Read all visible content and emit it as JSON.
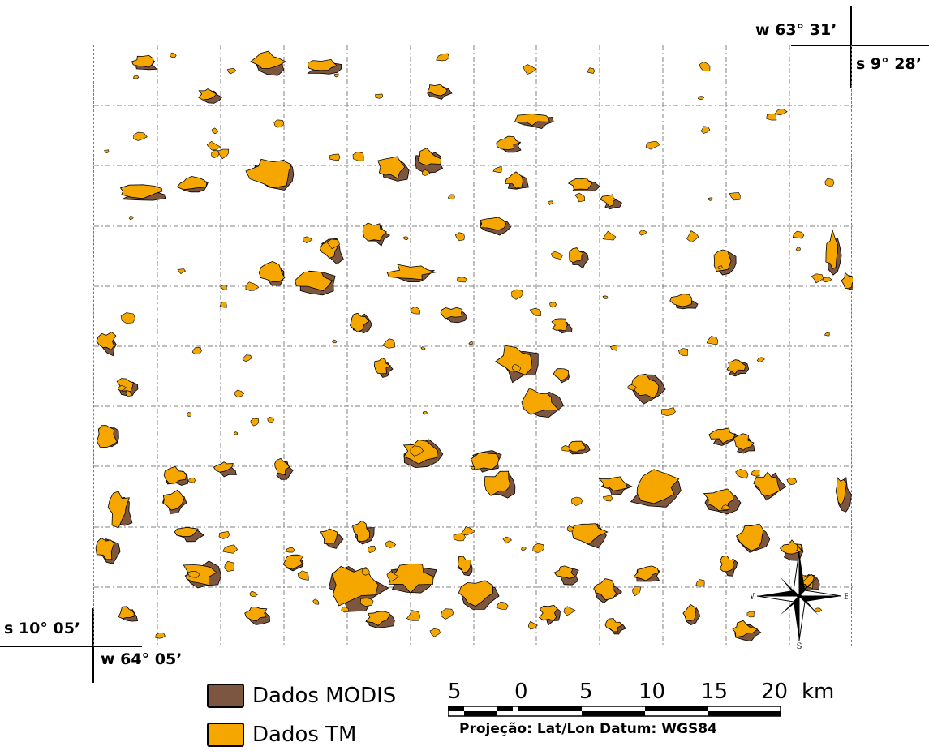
{
  "map": {
    "colors": {
      "modis": "#7d5640",
      "tm": "#f5a700",
      "outline": "#000000",
      "grid": "#808080"
    },
    "corners": {
      "top_right_lon": "w 63° 31’",
      "top_right_lat": "s 9° 28’",
      "bottom_left_lat": "s 10° 05’",
      "bottom_left_lon": "w 64° 05’"
    },
    "grid": {
      "visible": true,
      "columns": 12,
      "rows": 10
    }
  },
  "legend": {
    "items": [
      {
        "label": "Dados MODIS",
        "color": "#7d5640"
      },
      {
        "label": "Dados TM",
        "color": "#f5a700"
      }
    ]
  },
  "scale_bar": {
    "labels": [
      "5",
      "0",
      "5",
      "10",
      "15",
      "20"
    ],
    "unit": "km",
    "projection": "Projeção: Lat/Lon Datum: WGS84"
  },
  "compass": {
    "n": "N",
    "s": "S",
    "e": "E",
    "w": "W"
  }
}
